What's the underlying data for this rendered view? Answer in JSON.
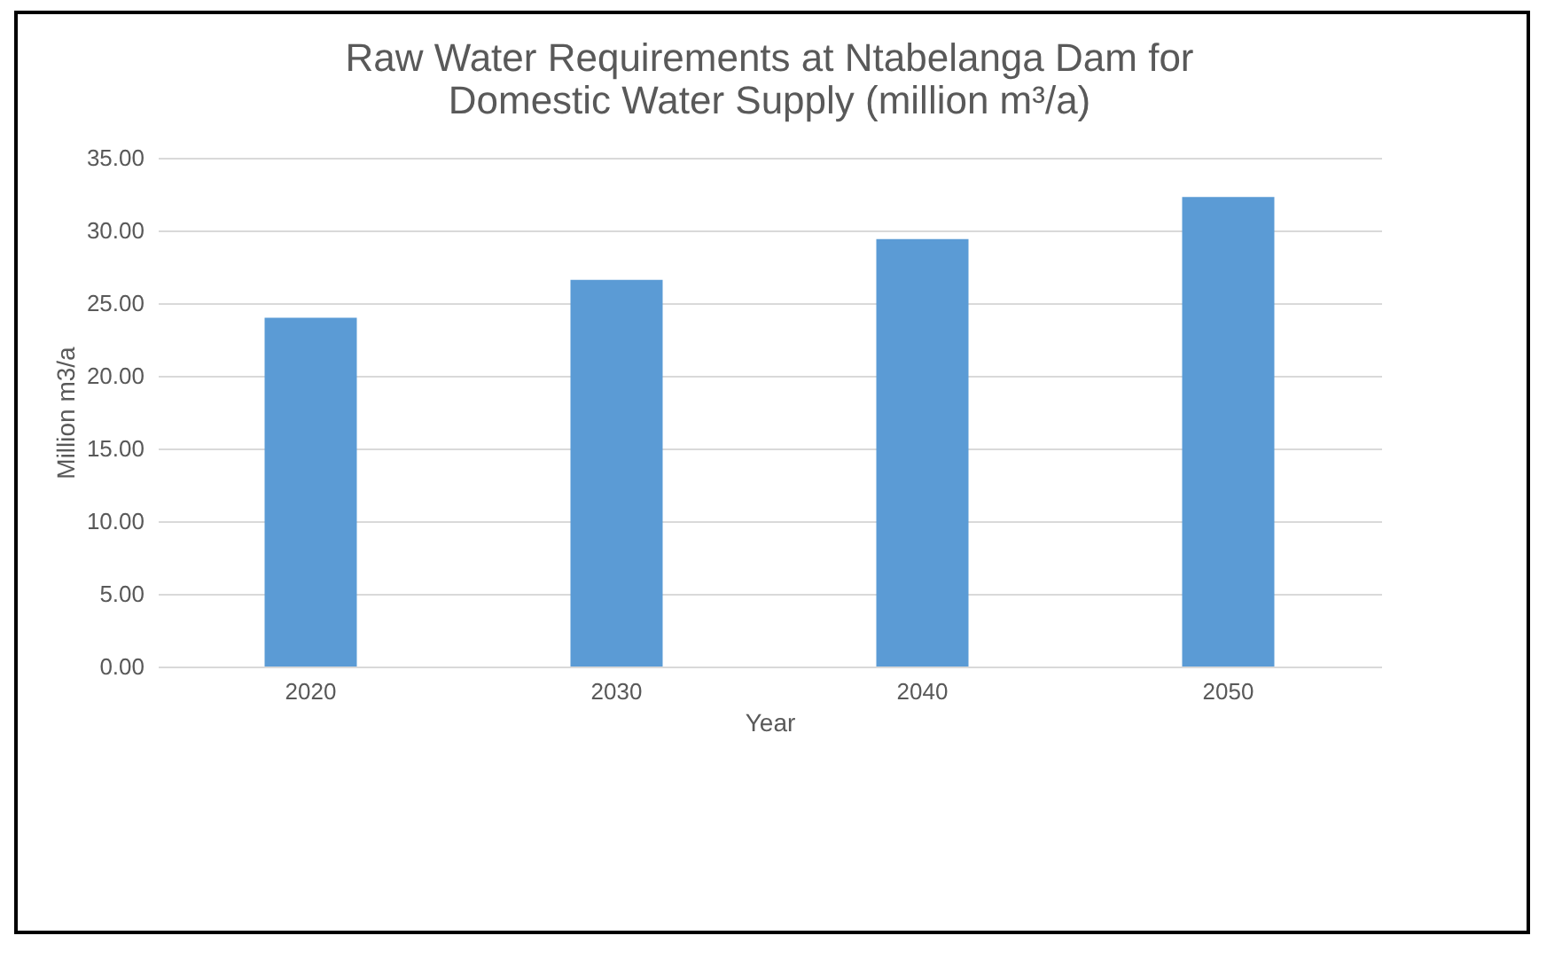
{
  "chart_data": {
    "type": "bar",
    "title": "Raw Water Requirements at Ntabelanga Dam for Domestic Water Supply (million m³/a)",
    "xlabel": "Year",
    "ylabel": "Million m3/a",
    "categories": [
      "2020",
      "2030",
      "2040",
      "2050"
    ],
    "values": [
      24.0,
      26.6,
      29.4,
      32.3
    ],
    "color": "#5b9bd5",
    "ylim": [
      0,
      35
    ],
    "yticks": [
      {
        "value": 0,
        "label": "0.00"
      },
      {
        "value": 5,
        "label": "5.00"
      },
      {
        "value": 10,
        "label": "10.00"
      },
      {
        "value": 15,
        "label": "15.00"
      },
      {
        "value": 20,
        "label": "20.00"
      },
      {
        "value": 25,
        "label": "25.00"
      },
      {
        "value": 30,
        "label": "30.00"
      },
      {
        "value": 35,
        "label": "35.00"
      }
    ],
    "grid": "y"
  }
}
